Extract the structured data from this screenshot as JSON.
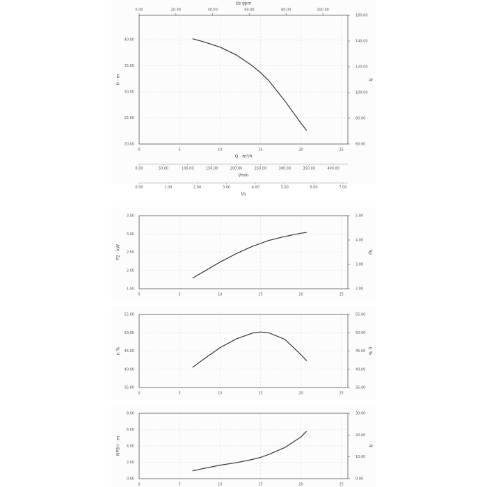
{
  "chart_data": [
    {
      "type": "line",
      "xlabel": "Q - m³/h",
      "ylabel": "H - m",
      "y2label": "ft",
      "x": [
        6.6,
        8,
        10,
        12,
        14,
        15,
        16,
        18,
        20,
        20.7
      ],
      "values": [
        40.2,
        39.6,
        38.6,
        37.1,
        35.0,
        33.7,
        32.2,
        28.3,
        24.0,
        22.6
      ],
      "color": "#333333",
      "xlim": [
        0,
        25.8
      ],
      "xticks": [
        0,
        5,
        10,
        15,
        20,
        25
      ],
      "ylim": [
        20,
        44.7
      ],
      "yticks": [
        {
          "value": 20,
          "label": "20.00"
        },
        {
          "value": 25,
          "label": "25.00"
        },
        {
          "value": 30,
          "label": "30.00"
        },
        {
          "value": 35,
          "label": "35.00"
        },
        {
          "value": 40,
          "label": "40.00"
        }
      ],
      "y2lim": [
        60,
        160
      ],
      "y2ticks": [
        {
          "value": 60,
          "label": "60.00"
        },
        {
          "value": 80,
          "label": "80.00"
        },
        {
          "value": 100,
          "label": "100.00"
        },
        {
          "value": 120,
          "label": "120.00"
        },
        {
          "value": 140,
          "label": "140.00"
        },
        {
          "value": 160,
          "label": "160.00"
        }
      ],
      "grid": true,
      "top_axis": {
        "label": "Us gpm",
        "xlim": [
          0,
          113.6
        ],
        "xticks": [
          {
            "value": 0,
            "label": "0.00"
          },
          {
            "value": 20,
            "label": "20.00"
          },
          {
            "value": 40,
            "label": "40.00"
          },
          {
            "value": 60,
            "label": "60.00"
          },
          {
            "value": 80,
            "label": "80.00"
          },
          {
            "value": 100,
            "label": "100.00"
          }
        ]
      },
      "extra_axes": [
        {
          "label": "l/min",
          "xlim": [
            0,
            430
          ],
          "xticks": [
            {
              "value": 0,
              "label": "0.00"
            },
            {
              "value": 50,
              "label": "50.00"
            },
            {
              "value": 100,
              "label": "100.00"
            },
            {
              "value": 150,
              "label": "150.00"
            },
            {
              "value": 200,
              "label": "200.00"
            },
            {
              "value": 250,
              "label": "250.00"
            },
            {
              "value": 300,
              "label": "300.00"
            },
            {
              "value": 350,
              "label": "350.00"
            },
            {
              "value": 400,
              "label": "400.00"
            }
          ]
        },
        {
          "label": "l/s",
          "xlim": [
            0,
            7.17
          ],
          "xticks": [
            {
              "value": 0,
              "label": "0.00"
            },
            {
              "value": 1,
              "label": "1.00"
            },
            {
              "value": 2,
              "label": "2.00"
            },
            {
              "value": 3,
              "label": "3.00"
            },
            {
              "value": 4,
              "label": "4.00"
            },
            {
              "value": 5,
              "label": "5.00"
            },
            {
              "value": 6,
              "label": "6.00"
            },
            {
              "value": 7,
              "label": "7.00"
            }
          ]
        }
      ]
    },
    {
      "type": "line",
      "ylabel": "P2 - kW",
      "y2label": "hp",
      "x": [
        6.6,
        8,
        10,
        12,
        14,
        15,
        16,
        18,
        20,
        20.7
      ],
      "values": [
        1.79,
        1.97,
        2.23,
        2.46,
        2.66,
        2.74,
        2.82,
        2.93,
        3.02,
        3.04
      ],
      "color": "#333333",
      "xlim": [
        0,
        25.8
      ],
      "xticks": [
        0,
        5,
        10,
        15,
        20,
        25
      ],
      "ylim": [
        1.5,
        3.5
      ],
      "yticks": [
        {
          "value": 1.5,
          "label": "1.50"
        },
        {
          "value": 2,
          "label": "2.00"
        },
        {
          "value": 2.5,
          "label": "2.50"
        },
        {
          "value": 3,
          "label": "3.00"
        },
        {
          "value": 3.5,
          "label": "3.50"
        }
      ],
      "y2lim": [
        2,
        5
      ],
      "y2ticks": [
        {
          "value": 2,
          "label": "2.00"
        },
        {
          "value": 3,
          "label": "3.00"
        },
        {
          "value": 4,
          "label": "4.00"
        },
        {
          "value": 5,
          "label": "5.00"
        }
      ],
      "grid": true
    },
    {
      "type": "line",
      "ylabel": "η %",
      "y2label": "η %",
      "x": [
        6.6,
        8,
        10,
        12,
        14,
        15,
        16,
        18,
        20,
        20.7
      ],
      "values": [
        40.5,
        42.8,
        45.9,
        48.3,
        49.9,
        50.2,
        50.0,
        48.2,
        44.0,
        42.3
      ],
      "color": "#333333",
      "xlim": [
        0,
        25.8
      ],
      "xticks": [
        0,
        5,
        10,
        15,
        20,
        25
      ],
      "ylim": [
        35,
        55
      ],
      "yticks": [
        {
          "value": 35,
          "label": "35.00"
        },
        {
          "value": 40,
          "label": "40.00"
        },
        {
          "value": 45,
          "label": "45.00"
        },
        {
          "value": 50,
          "label": "50.00"
        },
        {
          "value": 55,
          "label": "55.00"
        }
      ],
      "y2lim": [
        35,
        55
      ],
      "y2ticks": [
        {
          "value": 35,
          "label": "35.00"
        },
        {
          "value": 40,
          "label": "40.00"
        },
        {
          "value": 45,
          "label": "45.00"
        },
        {
          "value": 50,
          "label": "50.00"
        },
        {
          "value": 55,
          "label": "55.00"
        }
      ],
      "grid": true
    },
    {
      "type": "line",
      "ylabel": "NPSH - m",
      "y2label": "ft",
      "x": [
        6.6,
        8,
        10,
        12,
        14,
        15,
        16,
        18,
        20,
        20.7
      ],
      "values": [
        0.95,
        1.25,
        1.65,
        1.95,
        2.35,
        2.6,
        2.95,
        3.8,
        5.1,
        5.8
      ],
      "color": "#333333",
      "xlim": [
        0,
        25.8
      ],
      "xticks": [
        0,
        5,
        10,
        15,
        20,
        25
      ],
      "ylim": [
        0,
        8
      ],
      "yticks": [
        {
          "value": 0,
          "label": "0.00"
        },
        {
          "value": 2,
          "label": "2.00"
        },
        {
          "value": 4,
          "label": "4.00"
        },
        {
          "value": 6,
          "label": "6.00"
        },
        {
          "value": 8,
          "label": "8.00"
        }
      ],
      "y2lim": [
        0,
        30
      ],
      "y2ticks": [
        {
          "value": 0,
          "label": "0.00"
        },
        {
          "value": 10,
          "label": "10.00"
        },
        {
          "value": 20,
          "label": "20.00"
        },
        {
          "value": 30,
          "label": "30.00"
        }
      ],
      "grid": true
    }
  ]
}
